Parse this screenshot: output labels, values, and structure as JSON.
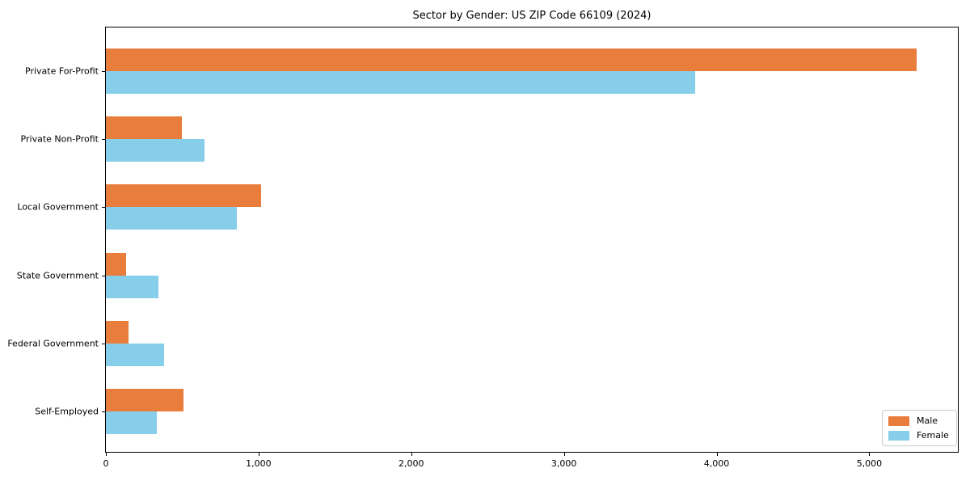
{
  "title": "Sector by Gender: US ZIP Code 66109 (2024)",
  "chart_data": {
    "type": "bar",
    "orientation": "horizontal",
    "title": "Sector by Gender: US ZIP Code 66109 (2024)",
    "xlabel": "",
    "ylabel": "",
    "categories": [
      "Private For-Profit",
      "Private Non-Profit",
      "Local Government",
      "State Government",
      "Federal Government",
      "Self-Employed"
    ],
    "series": [
      {
        "name": "Male",
        "color": "#E97D3C",
        "values": [
          5310,
          500,
          1015,
          130,
          150,
          510
        ]
      },
      {
        "name": "Female",
        "color": "#87CEEB",
        "values": [
          3860,
          645,
          860,
          345,
          380,
          335
        ]
      }
    ],
    "xlim": [
      0,
      5580
    ],
    "xticks": [
      0,
      1000,
      2000,
      3000,
      4000,
      5000
    ],
    "xtick_labels": [
      "0",
      "1,000",
      "2,000",
      "3,000",
      "4,000",
      "5,000"
    ],
    "legend_position": "lower right",
    "grid": false,
    "colors": {
      "male": "#E97D3C",
      "female": "#87CEEB",
      "spine": "#000000",
      "legend_border": "#cccccc",
      "background": "#ffffff"
    }
  }
}
